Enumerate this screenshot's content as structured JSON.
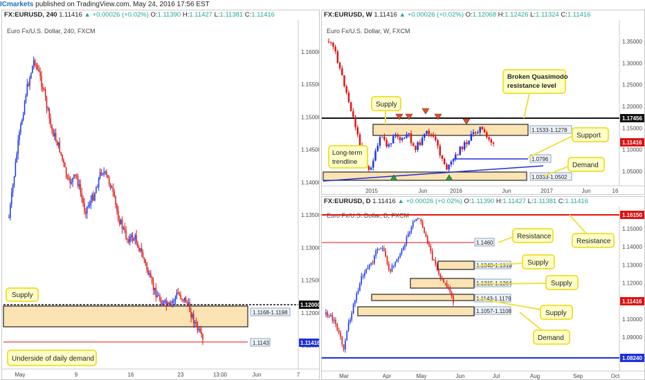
{
  "header": {
    "brand": "ICmarkets",
    "text": " published on TradingView.com, May 24, 2016 17:56 EST"
  },
  "colors": {
    "bull": "#1a35e6",
    "bear": "#e01414",
    "zone_fill": "#fbe3b4",
    "callout_fill": "#ffffc8",
    "callout_border": "#f0e040",
    "resistance": "#e01010",
    "support_blue": "#1c2fd8",
    "arrow_red": "#d9532c",
    "arrow_green": "#2e9a3c"
  },
  "left": {
    "symbol_line": "FX:EURUSD, 240",
    "price": "1.11416",
    "change": "+0.00026 (+0.02%)",
    "o": "1.11390",
    "h": "1.11427",
    "l": "1.11381",
    "c": "1.11416",
    "subtitle": "Euro Fx/U.S. Dollar, 240, FXCM",
    "y_ticks": [
      "1.16000",
      "1.15500",
      "1.15000",
      "1.14500",
      "1.14000",
      "1.13500",
      "1.13000",
      "1.12500",
      "1.12000",
      "1.11500"
    ],
    "x_ticks": [
      "May",
      "9",
      "16",
      "23",
      "13:00",
      "Jun",
      "7"
    ],
    "last_price_tag": "1.11416",
    "level_tag": "1.12000",
    "zone_label": "1.1168-1.1198",
    "line_label": "1.1143",
    "callouts": {
      "supply": "Supply",
      "demand": "Underside of daily demand"
    }
  },
  "weekly": {
    "symbol_line": "FX:EURUSD, W",
    "price": "1.11416",
    "change": "+0.00026 (+0.02%)",
    "o": "1.12068",
    "h": "1.12426",
    "l": "1.11324",
    "c": "1.11416",
    "subtitle": "Euro Fx/U.S. Dollar, W, FXCM",
    "y_ticks": [
      "1.35000",
      "1.30000",
      "1.25000",
      "1.20000",
      "1.15000",
      "1.10000",
      "1.05000"
    ],
    "x_ticks": [
      "2015",
      "Jun",
      "2016",
      "Jun",
      "2017",
      "Jun",
      "16"
    ],
    "tag_black": "1.17456",
    "tag_price": "1.11416",
    "zone_upper_label": "1.1533-1.1278",
    "zone_lower_label": "1.0333-1.0502",
    "line_label": "1.0796",
    "callouts": {
      "bqm": "Broken Quasimodo resistance level",
      "supply": "Supply",
      "support": "Support",
      "trendline": "Long-term trendline",
      "demand": "Demand"
    }
  },
  "daily": {
    "symbol_line": "FX:EURUSD, D",
    "price": "1.11416",
    "change": "+0.00026 (+0.02%)",
    "o": "1.11390",
    "h": "1.11427",
    "l": "1.11381",
    "c": "1.11416",
    "subtitle": "Euro Fx/U.S. Dollar, D, FXCM",
    "y_ticks": [
      "1.15000",
      "1.14000",
      "1.13000",
      "1.12000",
      "1.11000",
      "1.10000",
      "1.09000"
    ],
    "x_ticks": [
      "Mar",
      "Apr",
      "May",
      "Jun",
      "Jul",
      "Aug",
      "Sep",
      "Oct"
    ],
    "tag_top": "1.16150",
    "tag_price": "1.11416",
    "tag_bottom": "1.08240",
    "labels": [
      "1.1460",
      "1.1348-1.1310",
      "1.1215-1.1264",
      "1.1143-1.1179",
      "1.1057-1.1108"
    ],
    "callouts": {
      "resistance1": "Resistance",
      "resistance2": "Resistance",
      "supply1": "Supply",
      "supply2": "Supply",
      "supply3": "Supply",
      "demand": "Demand"
    }
  }
}
